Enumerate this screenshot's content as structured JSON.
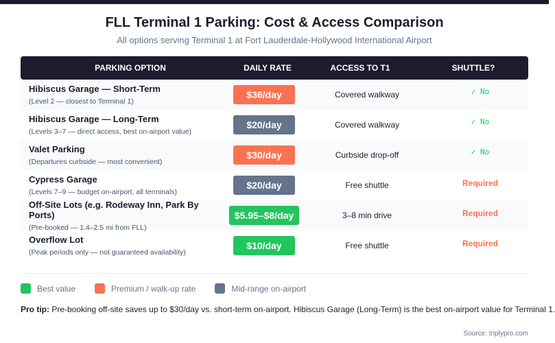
{
  "title": "FLL Terminal 1 Parking: Cost & Access Comparison",
  "subtitle": "All options serving Terminal 1 at Fort Lauderdale-Hollywood International Airport",
  "colors": {
    "best": "#22c55e",
    "premium": "#f97352",
    "mid": "#64748b",
    "header": "#1c1c2e"
  },
  "headers": [
    "PARKING OPTION",
    "DAILY RATE",
    "ACCESS TO T1",
    "SHUTTLE?"
  ],
  "rows": [
    {
      "name": "Hibiscus Garage — Short-Term",
      "detail": "(Level 2 — closest to Terminal 1)",
      "rate": "$36/day",
      "tier": "premium",
      "access": "Covered walkway",
      "shuttle": "✓ No",
      "shuttle_required": false
    },
    {
      "name": "Hibiscus Garage — Long-Term",
      "detail": "(Levels 3–7 — direct access, best on-airport value)",
      "rate": "$20/day",
      "tier": "mid",
      "access": "Covered walkway",
      "shuttle": "✓ No",
      "shuttle_required": false
    },
    {
      "name": "Valet Parking",
      "detail": "(Departures curbside — most convenient)",
      "rate": "$30/day",
      "tier": "premium",
      "access": "Curbside drop-off",
      "shuttle": "✓ No",
      "shuttle_required": false
    },
    {
      "name": "Cypress Garage",
      "detail": "(Levels 7–9 — budget on-airport, all terminals)",
      "rate": "$20/day",
      "tier": "mid",
      "access": "Free shuttle",
      "shuttle": "Required",
      "shuttle_required": true
    },
    {
      "name": "Off-Site Lots (e.g. Rodeway Inn, Park By Ports)",
      "detail": "(Pre-booked — 1.4–2.5 mi from FLL)",
      "rate": "$5.95–$8/day",
      "tier": "best",
      "access": "3–8 min drive",
      "shuttle": "Required",
      "shuttle_required": true
    },
    {
      "name": "Overflow Lot",
      "detail": "(Peak periods only — not guaranteed availability)",
      "rate": "$10/day",
      "tier": "best",
      "access": "Free shuttle",
      "shuttle": "Required",
      "shuttle_required": true
    }
  ],
  "legend": [
    {
      "label": "Best value",
      "tier": "best"
    },
    {
      "label": "Premium / walk-up rate",
      "tier": "premium"
    },
    {
      "label": "Mid-range on-airport",
      "tier": "mid"
    }
  ],
  "tip": {
    "label": "Pro tip:",
    "text": " Pre-booking off-site saves up to $30/day vs. short-term on-airport. Hibiscus Garage (Long-Term) is the best on-airport value for Terminal 1."
  },
  "source": "Source: triplypro.com"
}
